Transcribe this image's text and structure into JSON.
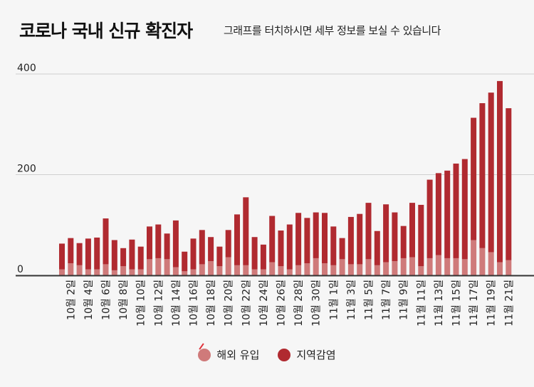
{
  "header": {
    "title": "코로나 국내 신규 확진자",
    "subtitle": "그래프를 터치하시면 세부 정보를 보실 수 있습니다"
  },
  "colors": {
    "overseas": "#cf7a7a",
    "local": "#b02a30",
    "grid": "#cfcfcf",
    "axis": "#333333"
  },
  "chart_data": {
    "type": "bar",
    "stacked": true,
    "ylim": [
      0,
      400
    ],
    "yticks": [
      0,
      200,
      400
    ],
    "grid": true,
    "legend_position": "bottom",
    "categories": [
      "10월 1일",
      "10월 2일",
      "10월 3일",
      "10월 4일",
      "10월 5일",
      "10월 6일",
      "10월 7일",
      "10월 8일",
      "10월 9일",
      "10월 10일",
      "10월 11일",
      "10월 12일",
      "10월 13일",
      "10월 14일",
      "10월 15일",
      "10월 16일",
      "10월 17일",
      "10월 18일",
      "10월 19일",
      "10월 20일",
      "10월 21일",
      "10월 22일",
      "10월 23일",
      "10월 24일",
      "10월 25일",
      "10월 26일",
      "10월 27일",
      "10월 28일",
      "10월 29일",
      "10월 30일",
      "10월 31일",
      "11월 1일",
      "11월 2일",
      "11월 3일",
      "11월 4일",
      "11월 5일",
      "11월 6일",
      "11월 7일",
      "11월 8일",
      "11월 9일",
      "11월 10일",
      "11월 11일",
      "11월 12일",
      "11월 13일",
      "11월 14일",
      "11월 15일",
      "11월 16일",
      "11월 17일",
      "11월 18일",
      "11월 19일",
      "11월 20일",
      "11월 21일"
    ],
    "visible_tick_labels": [
      "10월 2일",
      "10월 4일",
      "10월 6일",
      "10월 8일",
      "10월 10일",
      "10월 12일",
      "10월 14일",
      "10월 16일",
      "10월 18일",
      "10월 20일",
      "10월 22일",
      "10월 24일",
      "10월 26일",
      "10월 28일",
      "10월 30일",
      "11월 1일",
      "11월 3일",
      "11월 5일",
      "11월 7일",
      "11월 9일",
      "11월 11일",
      "11월 13일",
      "11월 15일",
      "11월 17일",
      "11월 19일",
      "11월 21일"
    ],
    "series": [
      {
        "name": "해외 유입",
        "values": [
          12,
          24,
          20,
          12,
          12,
          22,
          10,
          18,
          12,
          12,
          32,
          34,
          32,
          16,
          8,
          12,
          22,
          28,
          18,
          36,
          20,
          20,
          12,
          12,
          26,
          18,
          12,
          20,
          24,
          34,
          24,
          20,
          32,
          22,
          22,
          32,
          20,
          26,
          28,
          34,
          36,
          18,
          34,
          40,
          34,
          34,
          32,
          70,
          54,
          46,
          26,
          30
        ]
      },
      {
        "name": "지역감염",
        "values": [
          51,
          50,
          44,
          61,
          63,
          91,
          60,
          36,
          59,
          45,
          65,
          67,
          51,
          93,
          39,
          61,
          68,
          48,
          39,
          54,
          101,
          135,
          64,
          49,
          92,
          71,
          89,
          104,
          90,
          91,
          100,
          77,
          42,
          94,
          100,
          112,
          68,
          115,
          97,
          64,
          108,
          122,
          156,
          163,
          174,
          188,
          199,
          243,
          288,
          317,
          360,
          302
        ]
      }
    ]
  },
  "legend": {
    "overseas_label": "해외 유입",
    "local_label": "지역감염"
  }
}
